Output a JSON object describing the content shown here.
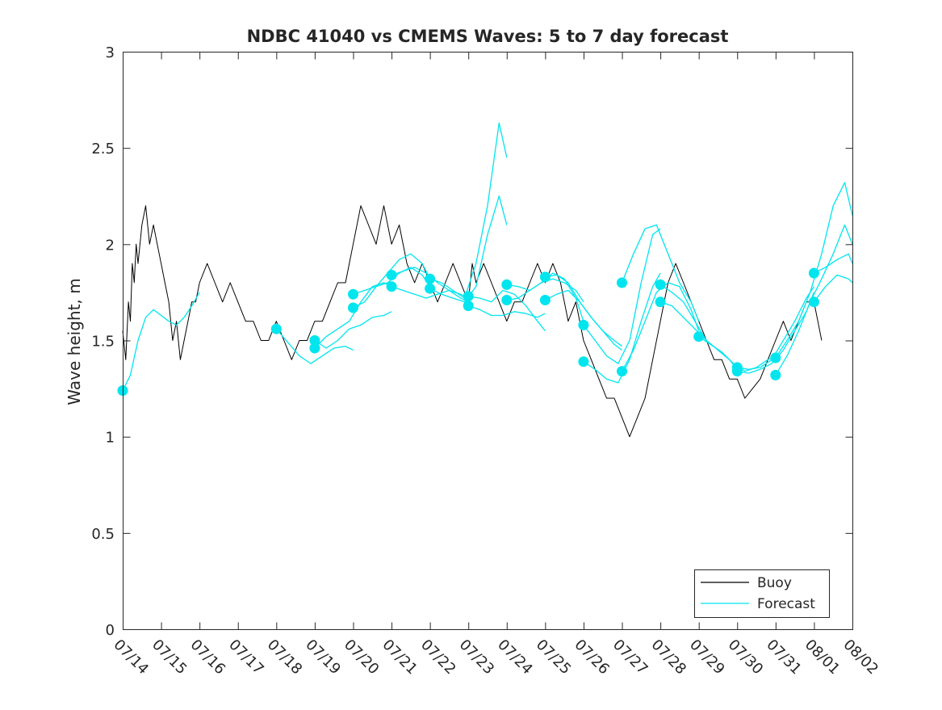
{
  "chart_data": {
    "type": "line",
    "title": "NDBC 41040 vs CMEMS Waves: 5 to 7 day forecast",
    "xlabel": "",
    "ylabel": "Wave height, m",
    "xlim": [
      "07/14",
      "08/02"
    ],
    "ylim": [
      0,
      3
    ],
    "yticks": [
      0,
      0.5,
      1,
      1.5,
      2,
      2.5,
      3
    ],
    "ytick_labels": [
      "0",
      "0.5",
      "1",
      "1.5",
      "2",
      "2.5",
      "3"
    ],
    "xtick_labels": [
      "07/14",
      "07/15",
      "07/16",
      "07/17",
      "07/18",
      "07/19",
      "07/20",
      "07/21",
      "07/22",
      "07/23",
      "07/24",
      "07/25",
      "07/26",
      "07/27",
      "07/28",
      "07/29",
      "07/30",
      "07/31",
      "08/01",
      "08/02"
    ],
    "x_unit": "days since 07/14",
    "grid": false,
    "legend": {
      "placement": "bottom-right",
      "entries": [
        "Buoy",
        "Forecast"
      ]
    },
    "colors": {
      "buoy": "#000000",
      "forecast": "#00e5ee",
      "axes": "#262626"
    },
    "series": [
      {
        "name": "Buoy",
        "color": "#000000",
        "x": [
          0.0,
          0.08,
          0.15,
          0.2,
          0.25,
          0.3,
          0.35,
          0.4,
          0.5,
          0.6,
          0.7,
          0.8,
          0.9,
          1.0,
          1.1,
          1.2,
          1.3,
          1.4,
          1.5,
          1.6,
          1.7,
          1.8,
          1.9,
          2.0,
          2.2,
          2.4,
          2.6,
          2.8,
          3.0,
          3.2,
          3.4,
          3.6,
          3.8,
          4.0,
          4.2,
          4.4,
          4.6,
          4.8,
          5.0,
          5.2,
          5.4,
          5.6,
          5.8,
          6.0,
          6.2,
          6.4,
          6.6,
          6.8,
          7.0,
          7.2,
          7.4,
          7.6,
          7.8,
          8.0,
          8.2,
          8.4,
          8.6,
          8.8,
          9.0,
          9.1,
          9.2,
          9.4,
          9.6,
          9.8,
          10.0,
          10.2,
          10.4,
          10.6,
          10.8,
          11.0,
          11.2,
          11.4,
          11.6,
          11.8,
          12.0,
          12.2,
          12.4,
          12.6,
          12.8,
          13.0,
          13.2,
          13.4,
          13.6,
          13.8,
          14.0,
          14.2,
          14.4,
          14.6,
          14.8,
          15.0,
          15.2,
          15.4,
          15.6,
          15.8,
          16.0,
          16.2,
          16.4,
          16.6,
          16.8,
          17.0,
          17.2,
          17.4,
          17.6,
          17.8,
          18.0,
          18.1,
          18.2
        ],
        "values": [
          1.55,
          1.4,
          1.7,
          1.6,
          1.9,
          1.8,
          2.0,
          1.9,
          2.1,
          2.2,
          2.0,
          2.1,
          2.0,
          1.9,
          1.8,
          1.7,
          1.5,
          1.6,
          1.4,
          1.5,
          1.6,
          1.7,
          1.7,
          1.8,
          1.9,
          1.8,
          1.7,
          1.8,
          1.7,
          1.6,
          1.6,
          1.5,
          1.5,
          1.6,
          1.5,
          1.4,
          1.5,
          1.5,
          1.6,
          1.6,
          1.7,
          1.8,
          1.8,
          2.0,
          2.2,
          2.1,
          2.0,
          2.2,
          2.0,
          2.1,
          1.9,
          1.8,
          1.9,
          1.8,
          1.7,
          1.8,
          1.9,
          1.8,
          1.7,
          1.9,
          1.8,
          1.9,
          1.8,
          1.7,
          1.6,
          1.7,
          1.7,
          1.8,
          1.9,
          1.8,
          1.9,
          1.8,
          1.6,
          1.7,
          1.5,
          1.4,
          1.3,
          1.2,
          1.2,
          1.1,
          1.0,
          1.1,
          1.2,
          1.4,
          1.6,
          1.8,
          1.9,
          1.8,
          1.7,
          1.6,
          1.5,
          1.4,
          1.4,
          1.3,
          1.3,
          1.2,
          1.25,
          1.3,
          1.4,
          1.5,
          1.6,
          1.5,
          1.6,
          1.7,
          1.7,
          1.6,
          1.5
        ]
      },
      {
        "name": "Forecast",
        "color": "#00e5ee",
        "x": [
          0.0,
          0.2,
          0.4,
          0.6,
          0.8,
          1.0,
          1.2,
          1.4,
          1.6,
          1.8,
          2.0
        ],
        "values": [
          1.24,
          1.32,
          1.5,
          1.62,
          1.66,
          1.63,
          1.6,
          1.58,
          1.62,
          1.68,
          1.75
        ]
      },
      {
        "name": "",
        "color": "#00e5ee",
        "x": [
          4.0,
          4.3,
          4.6,
          4.9,
          5.2,
          5.5,
          5.8,
          6.0
        ],
        "values": [
          1.56,
          1.49,
          1.42,
          1.38,
          1.42,
          1.46,
          1.47,
          1.45
        ]
      },
      {
        "name": "",
        "color": "#00e5ee",
        "x": [
          5.0,
          5.3,
          5.6,
          5.9,
          6.2,
          6.5,
          6.8,
          7.0
        ],
        "values": [
          1.5,
          1.46,
          1.5,
          1.56,
          1.58,
          1.62,
          1.63,
          1.65
        ]
      },
      {
        "name": "",
        "color": "#00e5ee",
        "x": [
          5.0,
          5.3,
          5.6,
          5.9,
          6.2,
          6.5,
          6.8,
          7.0
        ],
        "values": [
          1.46,
          1.52,
          1.56,
          1.6,
          1.7,
          1.78,
          1.8,
          1.78
        ]
      },
      {
        "name": "",
        "color": "#00e5ee",
        "x": [
          6.0,
          6.3,
          6.6,
          6.9,
          7.2,
          7.5,
          7.8,
          8.0
        ],
        "values": [
          1.74,
          1.76,
          1.78,
          1.85,
          1.92,
          1.95,
          1.9,
          1.82
        ]
      },
      {
        "name": "",
        "color": "#00e5ee",
        "x": [
          6.0,
          6.3,
          6.6,
          6.9,
          7.2,
          7.5,
          7.8,
          8.0
        ],
        "values": [
          1.67,
          1.7,
          1.78,
          1.8,
          1.85,
          1.88,
          1.84,
          1.78
        ]
      },
      {
        "name": "",
        "color": "#00e5ee",
        "x": [
          7.0,
          7.3,
          7.6,
          7.9,
          8.2,
          8.5,
          8.8,
          9.0
        ],
        "values": [
          1.84,
          1.86,
          1.88,
          1.85,
          1.8,
          1.76,
          1.72,
          1.7
        ]
      },
      {
        "name": "",
        "color": "#00e5ee",
        "x": [
          7.0,
          7.3,
          7.6,
          7.9,
          8.2,
          8.5,
          8.8,
          9.0
        ],
        "values": [
          1.78,
          1.76,
          1.74,
          1.72,
          1.74,
          1.76,
          1.74,
          1.72
        ]
      },
      {
        "name": "",
        "color": "#00e5ee",
        "x": [
          8.0,
          8.3,
          8.6,
          8.9,
          9.2,
          9.5,
          9.8,
          10.0
        ],
        "values": [
          1.82,
          1.8,
          1.76,
          1.72,
          1.9,
          2.2,
          2.63,
          2.45
        ]
      },
      {
        "name": "",
        "color": "#00e5ee",
        "x": [
          8.0,
          8.3,
          8.6,
          8.9,
          9.2,
          9.5,
          9.8,
          10.0
        ],
        "values": [
          1.77,
          1.74,
          1.72,
          1.7,
          1.78,
          2.05,
          2.25,
          2.1
        ]
      },
      {
        "name": "",
        "color": "#00e5ee",
        "x": [
          9.0,
          9.3,
          9.6,
          9.9,
          10.2,
          10.5,
          10.8,
          11.0
        ],
        "values": [
          1.73,
          1.72,
          1.7,
          1.76,
          1.74,
          1.68,
          1.6,
          1.55
        ]
      },
      {
        "name": "",
        "color": "#00e5ee",
        "x": [
          9.0,
          9.3,
          9.6,
          9.9,
          10.2,
          10.5,
          10.8,
          11.0
        ],
        "values": [
          1.68,
          1.66,
          1.63,
          1.63,
          1.65,
          1.64,
          1.62,
          1.64
        ]
      },
      {
        "name": "",
        "color": "#00e5ee",
        "x": [
          10.0,
          10.3,
          10.6,
          10.9,
          11.2,
          11.5,
          11.8,
          12.0
        ],
        "values": [
          1.79,
          1.78,
          1.76,
          1.8,
          1.82,
          1.8,
          1.76,
          1.7
        ]
      },
      {
        "name": "",
        "color": "#00e5ee",
        "x": [
          10.0,
          10.3,
          10.6,
          10.9,
          11.2,
          11.5,
          11.8,
          12.0
        ],
        "values": [
          1.71,
          1.72,
          1.76,
          1.8,
          1.85,
          1.82,
          1.72,
          1.6
        ]
      },
      {
        "name": "",
        "color": "#00e5ee",
        "x": [
          11.0,
          11.3,
          11.6,
          11.9,
          12.2,
          12.5,
          12.8,
          13.0
        ],
        "values": [
          1.83,
          1.84,
          1.8,
          1.7,
          1.62,
          1.55,
          1.5,
          1.47
        ]
      },
      {
        "name": "",
        "color": "#00e5ee",
        "x": [
          11.0,
          11.3,
          11.6,
          11.9,
          12.2,
          12.5,
          12.8,
          13.0
        ],
        "values": [
          1.71,
          1.74,
          1.76,
          1.7,
          1.62,
          1.55,
          1.48,
          1.45
        ]
      },
      {
        "name": "",
        "color": "#00e5ee",
        "x": [
          12.0,
          12.3,
          12.6,
          12.9,
          13.2,
          13.5,
          13.8,
          14.0
        ],
        "values": [
          1.58,
          1.5,
          1.42,
          1.38,
          1.5,
          1.8,
          2.05,
          2.08
        ]
      },
      {
        "name": "",
        "color": "#00e5ee",
        "x": [
          12.0,
          12.3,
          12.6,
          12.9,
          13.2,
          13.5,
          13.8,
          14.0
        ],
        "values": [
          1.39,
          1.35,
          1.3,
          1.28,
          1.4,
          1.6,
          1.78,
          1.85
        ]
      },
      {
        "name": "",
        "color": "#00e5ee",
        "x": [
          13.0,
          13.3,
          13.6,
          13.9,
          14.2,
          14.5,
          14.8,
          15.0
        ],
        "values": [
          1.8,
          1.95,
          2.08,
          2.1,
          1.95,
          1.8,
          1.7,
          1.6
        ]
      },
      {
        "name": "",
        "color": "#00e5ee",
        "x": [
          13.0,
          13.3,
          13.6,
          13.9,
          14.2,
          14.5,
          14.8,
          15.0
        ],
        "values": [
          1.34,
          1.45,
          1.6,
          1.75,
          1.8,
          1.78,
          1.66,
          1.55
        ]
      },
      {
        "name": "",
        "color": "#00e5ee",
        "x": [
          14.0,
          14.3,
          14.6,
          14.9,
          15.2,
          15.5,
          15.8,
          16.0
        ],
        "values": [
          1.79,
          1.75,
          1.7,
          1.6,
          1.5,
          1.45,
          1.4,
          1.36
        ]
      },
      {
        "name": "",
        "color": "#00e5ee",
        "x": [
          14.0,
          14.3,
          14.6,
          14.9,
          15.2,
          15.5,
          15.8,
          16.0
        ],
        "values": [
          1.7,
          1.68,
          1.62,
          1.56,
          1.5,
          1.45,
          1.4,
          1.35
        ]
      },
      {
        "name": "",
        "color": "#00e5ee",
        "x": [
          15.0,
          15.3,
          15.6,
          15.9,
          16.2,
          16.5,
          16.8,
          17.0
        ],
        "values": [
          1.52,
          1.48,
          1.44,
          1.38,
          1.34,
          1.36,
          1.4,
          1.42
        ]
      },
      {
        "name": "",
        "color": "#00e5ee",
        "x": [
          16.0,
          16.3,
          16.6,
          16.9,
          17.2,
          17.5,
          17.8,
          18.0
        ],
        "values": [
          1.36,
          1.35,
          1.36,
          1.4,
          1.5,
          1.6,
          1.72,
          1.78
        ]
      },
      {
        "name": "",
        "color": "#00e5ee",
        "x": [
          16.0,
          16.3,
          16.6,
          16.9,
          17.2,
          17.5,
          17.8,
          18.0
        ],
        "values": [
          1.34,
          1.33,
          1.35,
          1.38,
          1.45,
          1.55,
          1.65,
          1.75
        ]
      },
      {
        "name": "",
        "color": "#00e5ee",
        "x": [
          17.0,
          17.3,
          17.6,
          17.9,
          18.2,
          18.5,
          18.8,
          19.0
        ],
        "values": [
          1.41,
          1.5,
          1.6,
          1.75,
          1.95,
          2.2,
          2.32,
          2.15
        ]
      },
      {
        "name": "",
        "color": "#00e5ee",
        "x": [
          17.0,
          17.3,
          17.6,
          17.9,
          18.2,
          18.5,
          18.8,
          19.0
        ],
        "values": [
          1.32,
          1.42,
          1.55,
          1.7,
          1.82,
          1.95,
          2.1,
          2.0
        ]
      },
      {
        "name": "",
        "color": "#00e5ee",
        "x": [
          18.0,
          18.3,
          18.6,
          18.9,
          19.0
        ],
        "values": [
          1.85,
          1.88,
          1.92,
          1.95,
          1.9
        ]
      },
      {
        "name": "",
        "color": "#00e5ee",
        "x": [
          18.0,
          18.3,
          18.6,
          18.9,
          19.0
        ],
        "values": [
          1.7,
          1.78,
          1.84,
          1.82,
          1.8
        ]
      }
    ],
    "markers": {
      "color": "#00e5ee",
      "x": [
        0.0,
        4.0,
        5.0,
        5.0,
        6.0,
        6.0,
        7.0,
        7.0,
        8.0,
        8.0,
        9.0,
        9.0,
        10.0,
        10.0,
        11.0,
        11.0,
        12.0,
        12.0,
        13.0,
        13.0,
        14.0,
        14.0,
        15.0,
        16.0,
        16.0,
        17.0,
        17.0,
        18.0,
        18.0
      ],
      "values": [
        1.24,
        1.56,
        1.5,
        1.46,
        1.74,
        1.67,
        1.84,
        1.78,
        1.82,
        1.77,
        1.73,
        1.68,
        1.79,
        1.71,
        1.83,
        1.71,
        1.58,
        1.39,
        1.8,
        1.34,
        1.79,
        1.7,
        1.52,
        1.36,
        1.34,
        1.41,
        1.32,
        1.85,
        1.7
      ]
    }
  }
}
